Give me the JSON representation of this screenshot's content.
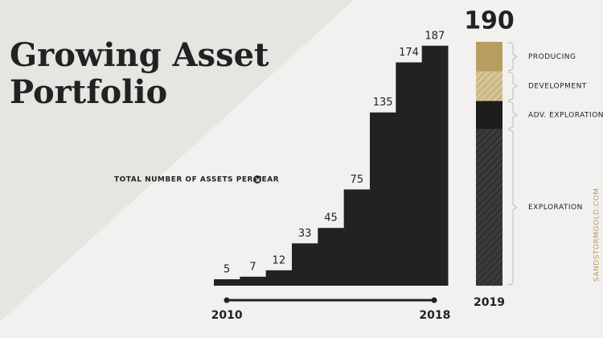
{
  "chart_data": [
    {
      "type": "bar",
      "title": "Growing Asset Portfolio",
      "annotation": "TOTAL NUMBER OF ASSETS PER YEAR",
      "categories": [
        "2010",
        null,
        null,
        null,
        null,
        null,
        null,
        null,
        "2018"
      ],
      "values": [
        5,
        7,
        12,
        33,
        45,
        75,
        135,
        174,
        187
      ],
      "color": "#222222",
      "ylim": [
        0,
        190
      ]
    },
    {
      "type": "stacked_bar",
      "categories": [
        "2019"
      ],
      "total": 190,
      "ylim": [
        0,
        190
      ],
      "series": [
        {
          "name": "PRODUCING",
          "color": "#b59e5f",
          "values": [
            23
          ]
        },
        {
          "name": "DEVELOPMENT",
          "color": "#cbb987",
          "values": [
            23
          ]
        },
        {
          "name": "ADV. EXPLORATION",
          "color": "#1c1c1c",
          "values": [
            22
          ]
        },
        {
          "name": "EXPLORATION",
          "color": "#3a3a3a",
          "values": [
            122
          ]
        }
      ]
    }
  ],
  "watermark": "SANDSTORMGOLD.COM"
}
